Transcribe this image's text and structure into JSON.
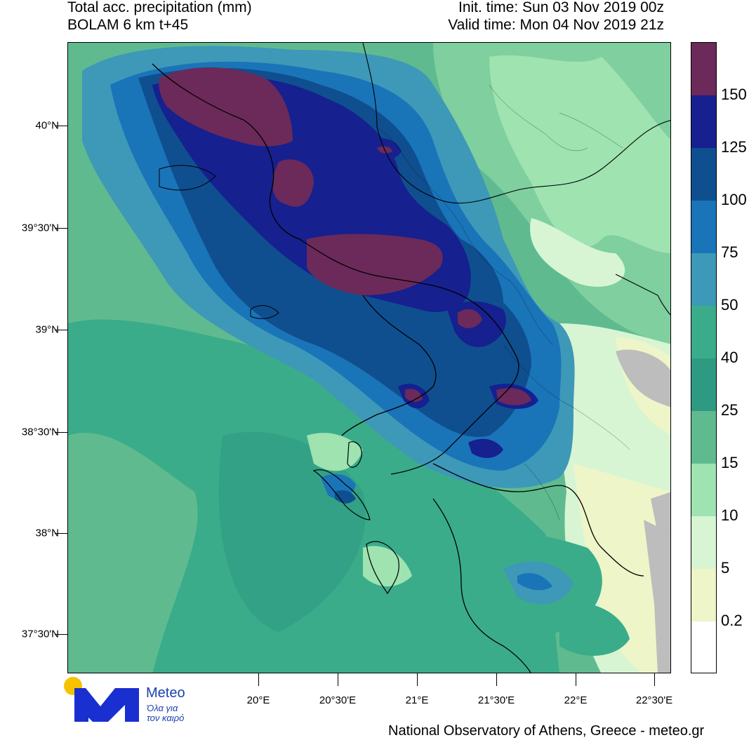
{
  "header": {
    "title": "Total acc. precipitation (mm)",
    "model": "BOLAM 6 km t+45",
    "init_time": "Init. time: Sun 03 Nov 2019 00z",
    "valid_time": "Valid time: Mon 04 Nov 2019 21z"
  },
  "lat_labels": [
    "40°N",
    "39°30'N",
    "39°N",
    "38°30'N",
    "38°N",
    "37°30'N"
  ],
  "lon_labels": [
    "20°E",
    "20°30'E",
    "21°E",
    "21°30'E",
    "22°E",
    "22°30'E"
  ],
  "legend": {
    "labels": [
      "150",
      "125",
      "100",
      "75",
      "50",
      "40",
      "25",
      "15",
      "10",
      "5",
      "0.2"
    ],
    "colors": [
      "#6b2a5a",
      "#16208f",
      "#0f4f8f",
      "#1a74b8",
      "#3e98b8",
      "#3aac8a",
      "#2f9a82",
      "#5fbb8f",
      "#9ee3b0",
      "#d7f5d3",
      "#eef5c8",
      "#ffffff"
    ]
  },
  "logo": {
    "name": "Meteo",
    "tagline_1": "Όλα για",
    "tagline_2": "τον καιρό"
  },
  "footer": "National Observatory of Athens, Greece - meteo.gr"
}
